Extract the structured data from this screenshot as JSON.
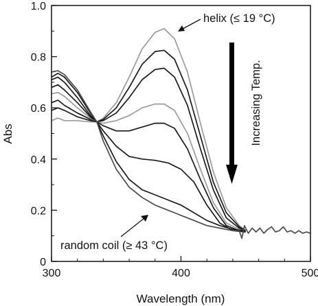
{
  "chart_data": {
    "type": "line",
    "xlabel": "Wavelength (nm)",
    "ylabel": "Abs",
    "xlim": [
      300,
      500
    ],
    "ylim": [
      0,
      1.0
    ],
    "x_ticks": [
      "300",
      "400",
      "500"
    ],
    "y_ticks": [
      "0",
      "0.2",
      "0.4",
      "0.6",
      "0.8",
      "1.0"
    ],
    "grid": false,
    "annotations": {
      "helix": "helix (≤ 19 °C)",
      "coil": "random coil (≥ 43 °C)",
      "direction": "Increasing Temp."
    },
    "series": [
      {
        "color": "#9a9a9a",
        "points": [
          [
            300,
            0.55
          ],
          [
            305,
            0.56
          ],
          [
            310,
            0.55
          ],
          [
            320,
            0.55
          ],
          [
            330,
            0.545
          ],
          [
            335,
            0.545
          ],
          [
            340,
            0.56
          ],
          [
            350,
            0.62
          ],
          [
            360,
            0.72
          ],
          [
            370,
            0.83
          ],
          [
            380,
            0.895
          ],
          [
            387,
            0.91
          ],
          [
            395,
            0.87
          ],
          [
            405,
            0.74
          ],
          [
            415,
            0.54
          ],
          [
            425,
            0.35
          ],
          [
            435,
            0.21
          ],
          [
            445,
            0.14
          ],
          [
            450,
            0.12
          ]
        ]
      },
      {
        "color": "#1a1a1a",
        "points": [
          [
            300,
            0.59
          ],
          [
            305,
            0.6
          ],
          [
            310,
            0.59
          ],
          [
            320,
            0.565
          ],
          [
            330,
            0.55
          ],
          [
            335,
            0.545
          ],
          [
            340,
            0.555
          ],
          [
            350,
            0.6
          ],
          [
            360,
            0.68
          ],
          [
            370,
            0.77
          ],
          [
            380,
            0.82
          ],
          [
            387,
            0.825
          ],
          [
            395,
            0.79
          ],
          [
            405,
            0.67
          ],
          [
            415,
            0.49
          ],
          [
            425,
            0.31
          ],
          [
            435,
            0.19
          ],
          [
            445,
            0.135
          ],
          [
            450,
            0.12
          ]
        ]
      },
      {
        "color": "#1a1a1a",
        "points": [
          [
            300,
            0.62
          ],
          [
            305,
            0.63
          ],
          [
            310,
            0.61
          ],
          [
            320,
            0.58
          ],
          [
            330,
            0.555
          ],
          [
            335,
            0.545
          ],
          [
            340,
            0.55
          ],
          [
            350,
            0.58
          ],
          [
            360,
            0.64
          ],
          [
            370,
            0.71
          ],
          [
            380,
            0.75
          ],
          [
            387,
            0.755
          ],
          [
            395,
            0.72
          ],
          [
            405,
            0.61
          ],
          [
            415,
            0.44
          ],
          [
            425,
            0.28
          ],
          [
            435,
            0.17
          ],
          [
            445,
            0.13
          ],
          [
            450,
            0.12
          ]
        ]
      },
      {
        "color": "#9a9a9a",
        "points": [
          [
            300,
            0.655
          ],
          [
            305,
            0.66
          ],
          [
            310,
            0.645
          ],
          [
            320,
            0.6
          ],
          [
            330,
            0.56
          ],
          [
            335,
            0.545
          ],
          [
            340,
            0.54
          ],
          [
            350,
            0.55
          ],
          [
            360,
            0.57
          ],
          [
            370,
            0.6
          ],
          [
            380,
            0.615
          ],
          [
            387,
            0.615
          ],
          [
            395,
            0.59
          ],
          [
            405,
            0.5
          ],
          [
            415,
            0.36
          ],
          [
            425,
            0.23
          ],
          [
            435,
            0.15
          ],
          [
            445,
            0.125
          ],
          [
            450,
            0.12
          ]
        ]
      },
      {
        "color": "#1a1a1a",
        "points": [
          [
            300,
            0.68
          ],
          [
            305,
            0.69
          ],
          [
            310,
            0.67
          ],
          [
            320,
            0.62
          ],
          [
            330,
            0.565
          ],
          [
            335,
            0.545
          ],
          [
            340,
            0.53
          ],
          [
            350,
            0.51
          ],
          [
            360,
            0.51
          ],
          [
            370,
            0.525
          ],
          [
            380,
            0.54
          ],
          [
            387,
            0.54
          ],
          [
            395,
            0.52
          ],
          [
            405,
            0.44
          ],
          [
            415,
            0.32
          ],
          [
            425,
            0.21
          ],
          [
            435,
            0.14
          ],
          [
            445,
            0.12
          ],
          [
            450,
            0.115
          ]
        ]
      },
      {
        "color": "#1a1a1a",
        "points": [
          [
            300,
            0.71
          ],
          [
            305,
            0.72
          ],
          [
            310,
            0.7
          ],
          [
            320,
            0.64
          ],
          [
            330,
            0.57
          ],
          [
            335,
            0.545
          ],
          [
            340,
            0.51
          ],
          [
            350,
            0.45
          ],
          [
            360,
            0.41
          ],
          [
            370,
            0.4
          ],
          [
            380,
            0.395
          ],
          [
            390,
            0.385
          ],
          [
            400,
            0.36
          ],
          [
            410,
            0.31
          ],
          [
            420,
            0.22
          ],
          [
            430,
            0.15
          ],
          [
            440,
            0.12
          ],
          [
            450,
            0.115
          ]
        ]
      },
      {
        "color": "#1a1a1a",
        "points": [
          [
            300,
            0.72
          ],
          [
            305,
            0.735
          ],
          [
            310,
            0.72
          ],
          [
            320,
            0.66
          ],
          [
            330,
            0.58
          ],
          [
            335,
            0.545
          ],
          [
            340,
            0.49
          ],
          [
            350,
            0.39
          ],
          [
            360,
            0.32
          ],
          [
            370,
            0.28
          ],
          [
            380,
            0.26
          ],
          [
            390,
            0.24
          ],
          [
            400,
            0.22
          ],
          [
            410,
            0.19
          ],
          [
            420,
            0.16
          ],
          [
            430,
            0.14
          ],
          [
            440,
            0.125
          ],
          [
            450,
            0.12
          ]
        ]
      },
      {
        "color": "#4a4a4a",
        "points": [
          [
            300,
            0.74
          ],
          [
            305,
            0.745
          ],
          [
            310,
            0.73
          ],
          [
            320,
            0.67
          ],
          [
            330,
            0.585
          ],
          [
            335,
            0.545
          ],
          [
            340,
            0.47
          ],
          [
            350,
            0.36
          ],
          [
            360,
            0.29
          ],
          [
            370,
            0.25
          ],
          [
            380,
            0.22
          ],
          [
            390,
            0.2
          ],
          [
            400,
            0.18
          ],
          [
            410,
            0.16
          ],
          [
            420,
            0.14
          ],
          [
            430,
            0.13
          ],
          [
            440,
            0.12
          ],
          [
            445,
            0.12
          ],
          [
            447,
            0.09
          ],
          [
            449,
            0.14
          ],
          [
            452,
            0.11
          ],
          [
            455,
            0.13
          ],
          [
            458,
            0.115
          ],
          [
            461,
            0.13
          ],
          [
            464,
            0.11
          ],
          [
            467,
            0.125
          ],
          [
            470,
            0.135
          ],
          [
            473,
            0.115
          ],
          [
            476,
            0.12
          ],
          [
            479,
            0.135
          ],
          [
            482,
            0.115
          ],
          [
            485,
            0.12
          ],
          [
            488,
            0.11
          ],
          [
            491,
            0.12
          ],
          [
            494,
            0.11
          ],
          [
            497,
            0.115
          ],
          [
            500,
            0.11
          ]
        ]
      }
    ]
  }
}
